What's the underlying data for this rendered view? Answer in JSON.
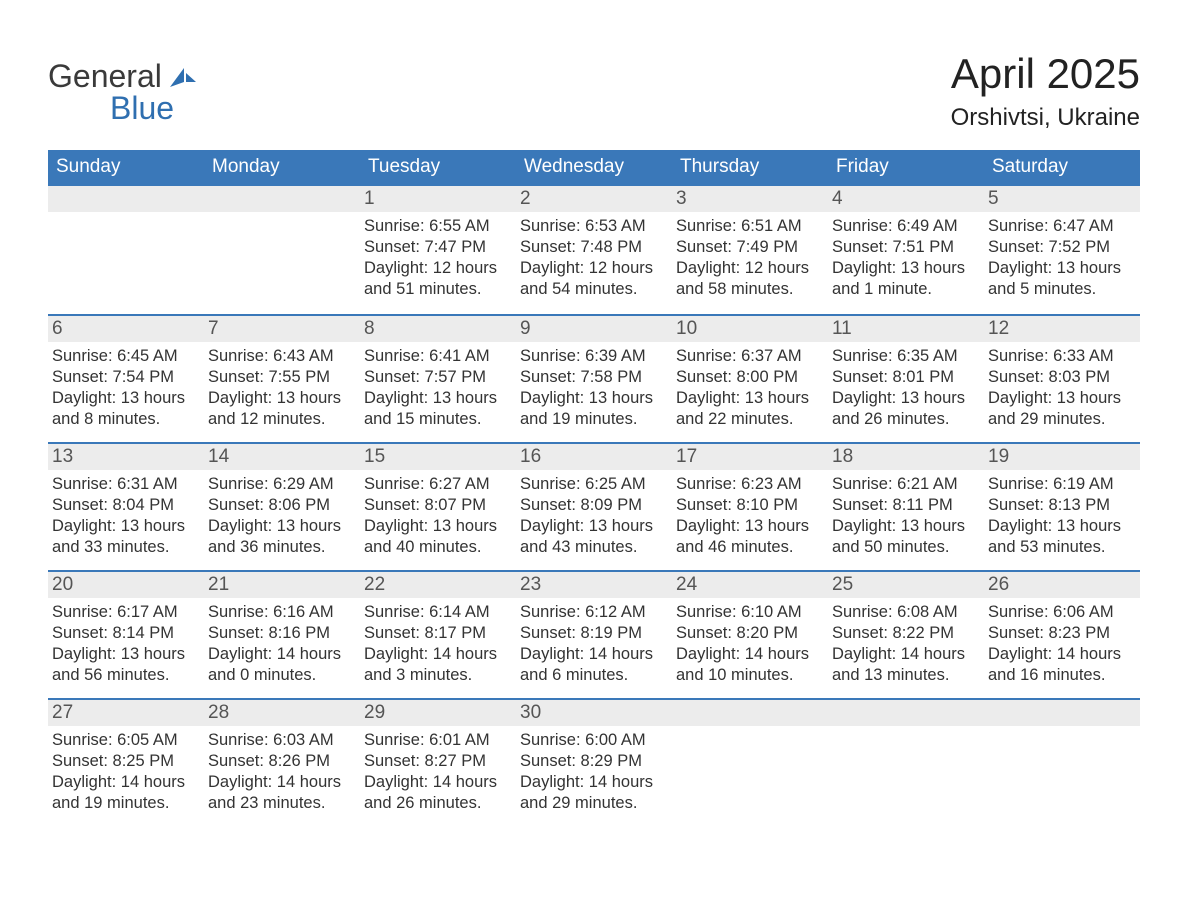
{
  "brand": {
    "text_general": "General",
    "text_blue": "Blue",
    "accent_color": "#2f6fb0"
  },
  "title": "April 2025",
  "location": "Orshivtsi, Ukraine",
  "colors": {
    "header_bg": "#3a78b9",
    "header_fg": "#ffffff",
    "daynum_bg": "#ececec",
    "daynum_fg": "#555555",
    "body_fg": "#333333",
    "page_bg": "#ffffff",
    "week_border": "#3a78b9"
  },
  "typography": {
    "title_fontsize": 42,
    "location_fontsize": 24,
    "header_fontsize": 19,
    "daynum_fontsize": 19,
    "body_fontsize": 16.5,
    "font_family": "Arial"
  },
  "day_headers": [
    "Sunday",
    "Monday",
    "Tuesday",
    "Wednesday",
    "Thursday",
    "Friday",
    "Saturday"
  ],
  "weeks": [
    [
      {
        "day": "",
        "sunrise": "",
        "sunset": "",
        "daylight1": "",
        "daylight2": ""
      },
      {
        "day": "",
        "sunrise": "",
        "sunset": "",
        "daylight1": "",
        "daylight2": ""
      },
      {
        "day": "1",
        "sunrise": "Sunrise: 6:55 AM",
        "sunset": "Sunset: 7:47 PM",
        "daylight1": "Daylight: 12 hours",
        "daylight2": "and 51 minutes."
      },
      {
        "day": "2",
        "sunrise": "Sunrise: 6:53 AM",
        "sunset": "Sunset: 7:48 PM",
        "daylight1": "Daylight: 12 hours",
        "daylight2": "and 54 minutes."
      },
      {
        "day": "3",
        "sunrise": "Sunrise: 6:51 AM",
        "sunset": "Sunset: 7:49 PM",
        "daylight1": "Daylight: 12 hours",
        "daylight2": "and 58 minutes."
      },
      {
        "day": "4",
        "sunrise": "Sunrise: 6:49 AM",
        "sunset": "Sunset: 7:51 PM",
        "daylight1": "Daylight: 13 hours",
        "daylight2": "and 1 minute."
      },
      {
        "day": "5",
        "sunrise": "Sunrise: 6:47 AM",
        "sunset": "Sunset: 7:52 PM",
        "daylight1": "Daylight: 13 hours",
        "daylight2": "and 5 minutes."
      }
    ],
    [
      {
        "day": "6",
        "sunrise": "Sunrise: 6:45 AM",
        "sunset": "Sunset: 7:54 PM",
        "daylight1": "Daylight: 13 hours",
        "daylight2": "and 8 minutes."
      },
      {
        "day": "7",
        "sunrise": "Sunrise: 6:43 AM",
        "sunset": "Sunset: 7:55 PM",
        "daylight1": "Daylight: 13 hours",
        "daylight2": "and 12 minutes."
      },
      {
        "day": "8",
        "sunrise": "Sunrise: 6:41 AM",
        "sunset": "Sunset: 7:57 PM",
        "daylight1": "Daylight: 13 hours",
        "daylight2": "and 15 minutes."
      },
      {
        "day": "9",
        "sunrise": "Sunrise: 6:39 AM",
        "sunset": "Sunset: 7:58 PM",
        "daylight1": "Daylight: 13 hours",
        "daylight2": "and 19 minutes."
      },
      {
        "day": "10",
        "sunrise": "Sunrise: 6:37 AM",
        "sunset": "Sunset: 8:00 PM",
        "daylight1": "Daylight: 13 hours",
        "daylight2": "and 22 minutes."
      },
      {
        "day": "11",
        "sunrise": "Sunrise: 6:35 AM",
        "sunset": "Sunset: 8:01 PM",
        "daylight1": "Daylight: 13 hours",
        "daylight2": "and 26 minutes."
      },
      {
        "day": "12",
        "sunrise": "Sunrise: 6:33 AM",
        "sunset": "Sunset: 8:03 PM",
        "daylight1": "Daylight: 13 hours",
        "daylight2": "and 29 minutes."
      }
    ],
    [
      {
        "day": "13",
        "sunrise": "Sunrise: 6:31 AM",
        "sunset": "Sunset: 8:04 PM",
        "daylight1": "Daylight: 13 hours",
        "daylight2": "and 33 minutes."
      },
      {
        "day": "14",
        "sunrise": "Sunrise: 6:29 AM",
        "sunset": "Sunset: 8:06 PM",
        "daylight1": "Daylight: 13 hours",
        "daylight2": "and 36 minutes."
      },
      {
        "day": "15",
        "sunrise": "Sunrise: 6:27 AM",
        "sunset": "Sunset: 8:07 PM",
        "daylight1": "Daylight: 13 hours",
        "daylight2": "and 40 minutes."
      },
      {
        "day": "16",
        "sunrise": "Sunrise: 6:25 AM",
        "sunset": "Sunset: 8:09 PM",
        "daylight1": "Daylight: 13 hours",
        "daylight2": "and 43 minutes."
      },
      {
        "day": "17",
        "sunrise": "Sunrise: 6:23 AM",
        "sunset": "Sunset: 8:10 PM",
        "daylight1": "Daylight: 13 hours",
        "daylight2": "and 46 minutes."
      },
      {
        "day": "18",
        "sunrise": "Sunrise: 6:21 AM",
        "sunset": "Sunset: 8:11 PM",
        "daylight1": "Daylight: 13 hours",
        "daylight2": "and 50 minutes."
      },
      {
        "day": "19",
        "sunrise": "Sunrise: 6:19 AM",
        "sunset": "Sunset: 8:13 PM",
        "daylight1": "Daylight: 13 hours",
        "daylight2": "and 53 minutes."
      }
    ],
    [
      {
        "day": "20",
        "sunrise": "Sunrise: 6:17 AM",
        "sunset": "Sunset: 8:14 PM",
        "daylight1": "Daylight: 13 hours",
        "daylight2": "and 56 minutes."
      },
      {
        "day": "21",
        "sunrise": "Sunrise: 6:16 AM",
        "sunset": "Sunset: 8:16 PM",
        "daylight1": "Daylight: 14 hours",
        "daylight2": "and 0 minutes."
      },
      {
        "day": "22",
        "sunrise": "Sunrise: 6:14 AM",
        "sunset": "Sunset: 8:17 PM",
        "daylight1": "Daylight: 14 hours",
        "daylight2": "and 3 minutes."
      },
      {
        "day": "23",
        "sunrise": "Sunrise: 6:12 AM",
        "sunset": "Sunset: 8:19 PM",
        "daylight1": "Daylight: 14 hours",
        "daylight2": "and 6 minutes."
      },
      {
        "day": "24",
        "sunrise": "Sunrise: 6:10 AM",
        "sunset": "Sunset: 8:20 PM",
        "daylight1": "Daylight: 14 hours",
        "daylight2": "and 10 minutes."
      },
      {
        "day": "25",
        "sunrise": "Sunrise: 6:08 AM",
        "sunset": "Sunset: 8:22 PM",
        "daylight1": "Daylight: 14 hours",
        "daylight2": "and 13 minutes."
      },
      {
        "day": "26",
        "sunrise": "Sunrise: 6:06 AM",
        "sunset": "Sunset: 8:23 PM",
        "daylight1": "Daylight: 14 hours",
        "daylight2": "and 16 minutes."
      }
    ],
    [
      {
        "day": "27",
        "sunrise": "Sunrise: 6:05 AM",
        "sunset": "Sunset: 8:25 PM",
        "daylight1": "Daylight: 14 hours",
        "daylight2": "and 19 minutes."
      },
      {
        "day": "28",
        "sunrise": "Sunrise: 6:03 AM",
        "sunset": "Sunset: 8:26 PM",
        "daylight1": "Daylight: 14 hours",
        "daylight2": "and 23 minutes."
      },
      {
        "day": "29",
        "sunrise": "Sunrise: 6:01 AM",
        "sunset": "Sunset: 8:27 PM",
        "daylight1": "Daylight: 14 hours",
        "daylight2": "and 26 minutes."
      },
      {
        "day": "30",
        "sunrise": "Sunrise: 6:00 AM",
        "sunset": "Sunset: 8:29 PM",
        "daylight1": "Daylight: 14 hours",
        "daylight2": "and 29 minutes."
      },
      {
        "day": "",
        "sunrise": "",
        "sunset": "",
        "daylight1": "",
        "daylight2": ""
      },
      {
        "day": "",
        "sunrise": "",
        "sunset": "",
        "daylight1": "",
        "daylight2": ""
      },
      {
        "day": "",
        "sunrise": "",
        "sunset": "",
        "daylight1": "",
        "daylight2": ""
      }
    ]
  ]
}
